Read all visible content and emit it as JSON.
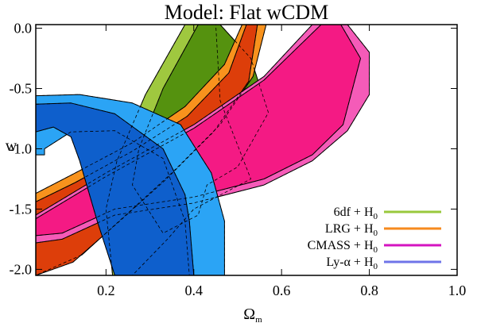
{
  "chart_data": {
    "type": "contour",
    "title": "Model: Flat wCDM",
    "xlabel_main": "Ω",
    "xlabel_sub": "m",
    "ylabel": "w",
    "xlim": [
      0.04,
      1.0
    ],
    "ylim": [
      -2.05,
      0.03
    ],
    "x_ticks": [
      {
        "value": 0.2,
        "label": "0.2"
      },
      {
        "value": 0.4,
        "label": "0.4"
      },
      {
        "value": 0.6,
        "label": "0.6"
      },
      {
        "value": 0.8,
        "label": "0.8"
      },
      {
        "value": 1.0,
        "label": "1.0"
      }
    ],
    "y_ticks": [
      {
        "value": 0.0,
        "label": "0.0"
      },
      {
        "value": -0.5,
        "label": "-0.5"
      },
      {
        "value": -1.0,
        "label": "-1.0"
      },
      {
        "value": -1.5,
        "label": "-1.5"
      },
      {
        "value": -2.0,
        "label": "-2.0"
      }
    ],
    "legend_position": "bottom-right",
    "legend": [
      {
        "text": "6df + H",
        "sub": "0",
        "color": "#99c83c"
      },
      {
        "text": "LRG + H",
        "sub": "0",
        "color": "#f68a1e"
      },
      {
        "text": "CMASS + H",
        "sub": "0",
        "color": "#d414c0"
      },
      {
        "text": "Ly-α + H",
        "sub": "0",
        "color": "#6f74e8"
      }
    ],
    "colors": {
      "six_df_outer": "#9fc83f",
      "six_df_inner": "#55920f",
      "lrg_outer": "#f8921d",
      "lrg_inner": "#dd3e0a",
      "cmass_outer": "#f55bb8",
      "cmass_inner": "#f41a84",
      "lya_outer": "#2ba4f5",
      "lya_inner": "#0e5fcc"
    },
    "series": [
      {
        "name": "6df + H0 (2σ)",
        "color_key": "six_df_outer",
        "x": [
          0.45,
          0.38,
          0.29,
          0.225,
          0.2,
          0.215,
          0.26,
          0.34,
          0.4,
          0.53,
          0.46
        ],
        "y": [
          0.03,
          0.03,
          -0.55,
          -1.1,
          -1.5,
          -2.05,
          -2.05,
          -1.75,
          -1.5,
          -1.25,
          -0.6
        ]
      },
      {
        "name": "6df + H0 (1σ)",
        "color_key": "six_df_inner",
        "x": [
          0.46,
          0.41,
          0.33,
          0.275,
          0.26,
          0.33,
          0.41,
          0.43,
          0.5,
          0.57,
          0.53
        ],
        "y": [
          0.03,
          0.03,
          -0.5,
          -1.0,
          -1.3,
          -1.7,
          -1.55,
          -1.3,
          -1.15,
          -0.7,
          -0.25
        ]
      },
      {
        "name": "LRG + H0 (2σ)",
        "color_key": "lrg_outer",
        "x": [
          0.04,
          0.13,
          0.26,
          0.38,
          0.47,
          0.51,
          0.565,
          0.535,
          0.46,
          0.35,
          0.245,
          0.145,
          0.04
        ],
        "y": [
          -1.37,
          -1.2,
          -0.95,
          -0.65,
          -0.3,
          0.03,
          0.03,
          -0.4,
          -0.8,
          -1.2,
          -1.55,
          -1.88,
          -2.05
        ]
      },
      {
        "name": "LRG + H0 (1σ)",
        "color_key": "lrg_inner",
        "x": [
          0.04,
          0.13,
          0.26,
          0.385,
          0.48,
          0.52,
          0.545,
          0.525,
          0.445,
          0.335,
          0.225,
          0.125,
          0.04
        ],
        "y": [
          -1.44,
          -1.28,
          -1.02,
          -0.73,
          -0.37,
          0.03,
          0.03,
          -0.44,
          -0.86,
          -1.26,
          -1.62,
          -1.94,
          -2.05
        ]
      },
      {
        "name": "CMASS + H0 (2σ)",
        "color_key": "cmass_outer",
        "x": [
          0.04,
          0.2,
          0.4,
          0.56,
          0.67,
          0.75,
          0.8,
          0.8,
          0.75,
          0.67,
          0.56,
          0.4,
          0.22,
          0.1,
          0.04
        ],
        "y": [
          -1.55,
          -1.2,
          -0.8,
          -0.4,
          0.03,
          0.03,
          -0.2,
          -0.55,
          -0.85,
          -1.1,
          -1.3,
          -1.45,
          -1.55,
          -1.75,
          -1.78
        ]
      },
      {
        "name": "CMASS + H0 (1σ)",
        "color_key": "cmass_inner",
        "x": [
          0.04,
          0.2,
          0.4,
          0.56,
          0.69,
          0.735,
          0.78,
          0.74,
          0.67,
          0.56,
          0.4,
          0.22,
          0.1,
          0.04
        ],
        "y": [
          -1.58,
          -1.23,
          -0.83,
          -0.43,
          0.03,
          0.03,
          -0.25,
          -0.8,
          -1.05,
          -1.25,
          -1.4,
          -1.5,
          -1.7,
          -1.72
        ]
      },
      {
        "name": "Ly-α + H0 (2σ)",
        "color_key": "lya_outer",
        "x": [
          0.04,
          0.14,
          0.26,
          0.37,
          0.44,
          0.47,
          0.47,
          0.39,
          0.38,
          0.33,
          0.22,
          0.12,
          0.06,
          0.06,
          0.04
        ],
        "y": [
          -0.56,
          -0.55,
          -0.62,
          -0.8,
          -1.2,
          -1.6,
          -2.05,
          -2.05,
          -1.6,
          -1.08,
          -0.85,
          -0.86,
          -1.0,
          -1.05,
          -1.05
        ]
      },
      {
        "name": "Ly-α + H0 (1σ)",
        "color_key": "lya_inner",
        "x": [
          0.04,
          0.12,
          0.22,
          0.33,
          0.38,
          0.39,
          0.4,
          0.22,
          0.18,
          0.14,
          0.12,
          0.08,
          0.04
        ],
        "y": [
          -0.63,
          -0.62,
          -0.71,
          -1.0,
          -1.38,
          -1.6,
          -2.05,
          -2.05,
          -1.6,
          -1.1,
          -0.9,
          -0.82,
          -0.86
        ]
      }
    ]
  }
}
